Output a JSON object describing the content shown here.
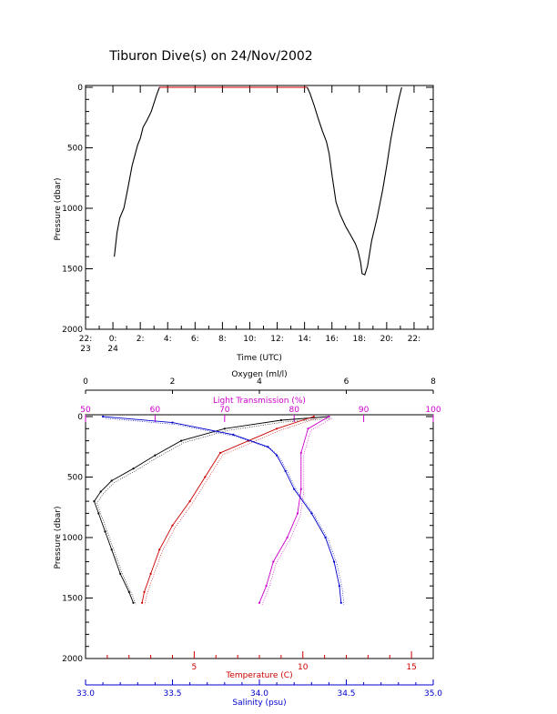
{
  "title": "Tiburon Dive(s) on 24/Nov/2002",
  "chart_data": [
    {
      "type": "line",
      "name": "pressure-vs-time",
      "xlabel": "Time (UTC)",
      "ylabel": "Pressure (dbar)",
      "xlim": [
        22,
        47.4
      ],
      "ylim": [
        2000,
        0
      ],
      "x_ticks": [
        {
          "value": 22,
          "label1": "22:",
          "label2": "23"
        },
        {
          "value": 24,
          "label1": "0:",
          "label2": "24"
        },
        {
          "value": 26,
          "label1": "2:",
          "label2": ""
        },
        {
          "value": 28,
          "label1": "4:",
          "label2": ""
        },
        {
          "value": 30,
          "label1": "6:",
          "label2": ""
        },
        {
          "value": 32,
          "label1": "8:",
          "label2": ""
        },
        {
          "value": 34,
          "label1": "10:",
          "label2": ""
        },
        {
          "value": 36,
          "label1": "12:",
          "label2": ""
        },
        {
          "value": 38,
          "label1": "14:",
          "label2": ""
        },
        {
          "value": 40,
          "label1": "16:",
          "label2": ""
        },
        {
          "value": 42,
          "label1": "18:",
          "label2": ""
        },
        {
          "value": 44,
          "label1": "20:",
          "label2": ""
        },
        {
          "value": 46,
          "label1": "22:",
          "label2": ""
        }
      ],
      "y_ticks": [
        0,
        500,
        1000,
        1500,
        2000
      ],
      "series": [
        {
          "color": "#000000",
          "points": [
            [
              24.1,
              1400
            ],
            [
              24.3,
              1200
            ],
            [
              24.5,
              1080
            ],
            [
              24.8,
              1000
            ],
            [
              25.1,
              830
            ],
            [
              25.4,
              650
            ],
            [
              25.8,
              480
            ],
            [
              26.0,
              420
            ],
            [
              26.2,
              330
            ],
            [
              26.5,
              270
            ],
            [
              26.8,
              200
            ],
            [
              27.0,
              130
            ],
            [
              27.2,
              60
            ],
            [
              27.4,
              0
            ],
            [
              38.2,
              0
            ],
            [
              38.4,
              50
            ],
            [
              38.7,
              150
            ],
            [
              39.0,
              260
            ],
            [
              39.3,
              360
            ],
            [
              39.6,
              450
            ],
            [
              39.8,
              550
            ],
            [
              40.0,
              720
            ],
            [
              40.3,
              950
            ],
            [
              40.6,
              1050
            ],
            [
              41.0,
              1150
            ],
            [
              41.3,
              1210
            ],
            [
              41.7,
              1290
            ],
            [
              41.9,
              1350
            ],
            [
              42.1,
              1450
            ],
            [
              42.2,
              1540
            ],
            [
              42.4,
              1550
            ],
            [
              42.6,
              1480
            ],
            [
              42.9,
              1270
            ],
            [
              43.3,
              1080
            ],
            [
              43.7,
              850
            ],
            [
              44.0,
              650
            ],
            [
              44.3,
              430
            ],
            [
              44.6,
              250
            ],
            [
              44.9,
              90
            ],
            [
              45.1,
              0
            ]
          ]
        },
        {
          "color": "#cc0000",
          "points": [
            [
              27.4,
              0
            ],
            [
              38.2,
              0
            ]
          ]
        }
      ]
    },
    {
      "type": "scatter",
      "name": "profiles",
      "ylabel": "Pressure (dbar)",
      "ylim": [
        2000,
        0
      ],
      "y_ticks": [
        0,
        500,
        1000,
        1500,
        2000
      ],
      "axes": {
        "oxygen": {
          "label": "Oxygen (ml/l)",
          "range": [
            0,
            8
          ],
          "ticks": [
            0,
            2,
            4,
            6,
            8
          ],
          "color": "#000000"
        },
        "light": {
          "label": "Light Transmission (%)",
          "range": [
            50,
            100
          ],
          "ticks": [
            50,
            60,
            70,
            80,
            90,
            100
          ],
          "color": "#cc00cc"
        },
        "temperature": {
          "label": "Temperature (C)",
          "range": [
            0,
            16
          ],
          "ticks": [
            5,
            10,
            15
          ],
          "color": "#cc0000"
        },
        "salinity": {
          "label": "Salinity (psu)",
          "range": [
            33.0,
            35.0
          ],
          "ticks": [
            "33.0",
            "33.5",
            "34.0",
            "34.5",
            "35.0"
          ],
          "color": "#0000cc"
        }
      },
      "series": [
        {
          "axis": "oxygen",
          "color": "#000000",
          "points": [
            [
              5.6,
              0
            ],
            [
              4.5,
              30
            ],
            [
              3.2,
              100
            ],
            [
              2.2,
              200
            ],
            [
              1.6,
              320
            ],
            [
              1.1,
              430
            ],
            [
              0.6,
              530
            ],
            [
              0.35,
              620
            ],
            [
              0.2,
              700
            ],
            [
              0.3,
              800
            ],
            [
              0.45,
              950
            ],
            [
              0.6,
              1100
            ],
            [
              0.8,
              1300
            ],
            [
              1.0,
              1450
            ],
            [
              1.1,
              1540
            ]
          ]
        },
        {
          "axis": "light",
          "color": "#cc00cc",
          "points": [
            [
              85,
              0
            ],
            [
              82,
              100
            ],
            [
              81,
              300
            ],
            [
              81,
              600
            ],
            [
              80.5,
              800
            ],
            [
              79,
              1000
            ],
            [
              77,
              1200
            ],
            [
              76,
              1400
            ],
            [
              75,
              1540
            ]
          ]
        },
        {
          "axis": "temperature",
          "color": "#cc0000",
          "points": [
            [
              10.5,
              0
            ],
            [
              8.8,
              100
            ],
            [
              7.5,
              200
            ],
            [
              6.2,
              300
            ],
            [
              5.5,
              500
            ],
            [
              4.8,
              700
            ],
            [
              4.0,
              900
            ],
            [
              3.4,
              1100
            ],
            [
              3.0,
              1300
            ],
            [
              2.7,
              1450
            ],
            [
              2.6,
              1540
            ]
          ]
        },
        {
          "axis": "salinity",
          "color": "#0000cc",
          "points": [
            [
              33.1,
              0
            ],
            [
              33.5,
              50
            ],
            [
              33.85,
              150
            ],
            [
              34.05,
              250
            ],
            [
              34.1,
              320
            ],
            [
              34.15,
              450
            ],
            [
              34.2,
              600
            ],
            [
              34.3,
              800
            ],
            [
              34.38,
              1000
            ],
            [
              34.43,
              1200
            ],
            [
              34.46,
              1400
            ],
            [
              34.47,
              1540
            ]
          ]
        }
      ]
    }
  ]
}
